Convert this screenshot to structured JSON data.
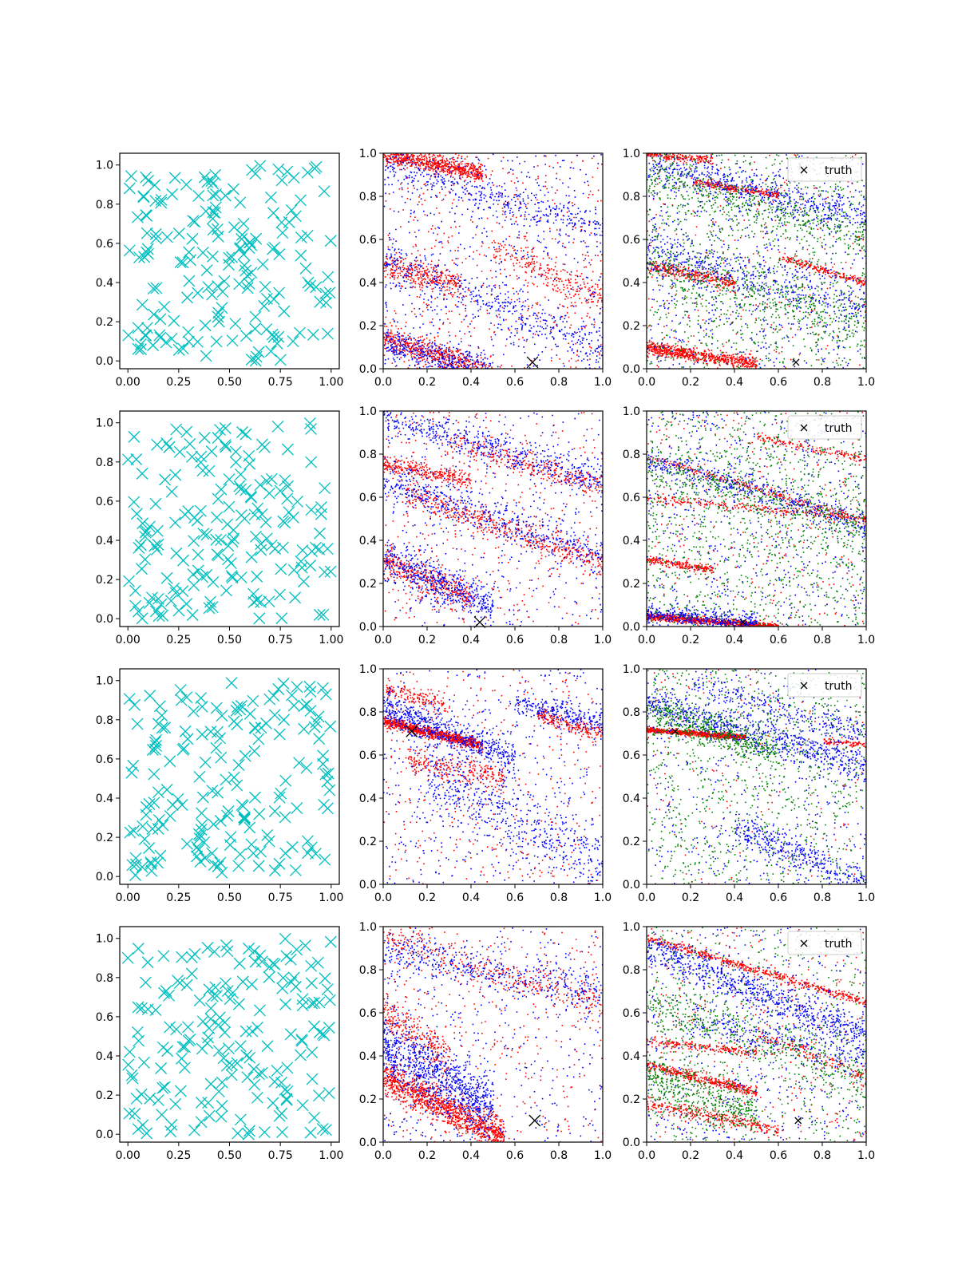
{
  "figure": {
    "background": "#ffffff",
    "colors": {
      "uniform_marker": "#00bfbf",
      "series_red": "#ff0000",
      "series_blue": "#0000ff",
      "series_green": "#008000",
      "truth_marker": "#000000"
    },
    "col1_xticks": [
      "0.00",
      "0.25",
      "0.50",
      "0.75",
      "1.00"
    ],
    "col1_yticks": [
      "0.0",
      "0.2",
      "0.4",
      "0.6",
      "0.8",
      "1.0"
    ],
    "col23_xticks": [
      "0.0",
      "0.2",
      "0.4",
      "0.6",
      "0.8",
      "1.0"
    ],
    "col23_yticks": [
      "0.0",
      "0.2",
      "0.4",
      "0.6",
      "0.8",
      "1.0"
    ]
  },
  "chart_data": [
    {
      "type": "scatter",
      "row": 1,
      "col": 1,
      "xlim": [
        -0.04,
        1.04
      ],
      "ylim": [
        -0.04,
        1.06
      ],
      "marker": "x",
      "color": "#00bfbf",
      "points": {
        "count": 180,
        "distribution": "uniform",
        "seed": 11
      }
    },
    {
      "type": "scatter",
      "row": 1,
      "col": 2,
      "xlim": [
        0,
        1
      ],
      "ylim": [
        0,
        1
      ],
      "truth": {
        "x": 0.68,
        "y": 0.03,
        "marker": "x"
      },
      "series": [
        {
          "color": "#ff0000",
          "bands": [
            {
              "x0": 0.0,
              "x1": 0.45,
              "y0": 1.0,
              "slope": -0.2,
              "noise": 0.02,
              "n": 700
            },
            {
              "x0": 0.0,
              "x1": 0.35,
              "y0": 0.48,
              "slope": -0.25,
              "noise": 0.03,
              "n": 300
            },
            {
              "x0": 0.0,
              "x1": 0.5,
              "y0": 0.15,
              "slope": -0.35,
              "noise": 0.03,
              "n": 600
            },
            {
              "x0": 0.5,
              "x1": 1.0,
              "y0": 0.78,
              "slope": -0.45,
              "noise": 0.04,
              "n": 250
            }
          ],
          "background_n": 500,
          "seed": 21
        },
        {
          "color": "#0000ff",
          "bands": [
            {
              "x0": 0.0,
              "x1": 1.0,
              "y0": 0.95,
              "slope": -0.3,
              "noise": 0.04,
              "n": 400
            },
            {
              "x0": 0.0,
              "x1": 1.0,
              "y0": 0.5,
              "slope": -0.4,
              "noise": 0.05,
              "n": 400
            },
            {
              "x0": 0.0,
              "x1": 0.5,
              "y0": 0.12,
              "slope": -0.3,
              "noise": 0.04,
              "n": 400
            }
          ],
          "background_n": 500,
          "seed": 22
        }
      ]
    },
    {
      "type": "scatter",
      "row": 1,
      "col": 3,
      "xlim": [
        0,
        1
      ],
      "ylim": [
        0,
        1
      ],
      "legend": {
        "label": "truth",
        "position": "upper right"
      },
      "truth": {
        "x": 0.68,
        "y": 0.03,
        "marker": "x"
      },
      "series": [
        {
          "color": "#ff0000",
          "bands": [
            {
              "x0": 0.0,
              "x1": 0.3,
              "y0": 1.0,
              "slope": -0.1,
              "noise": 0.01,
              "n": 200
            },
            {
              "x0": 0.2,
              "x1": 0.6,
              "y0": 0.9,
              "slope": -0.15,
              "noise": 0.01,
              "n": 250
            },
            {
              "x0": 0.0,
              "x1": 0.4,
              "y0": 0.48,
              "slope": -0.2,
              "noise": 0.015,
              "n": 300
            },
            {
              "x0": 0.0,
              "x1": 0.5,
              "y0": 0.1,
              "slope": -0.15,
              "noise": 0.015,
              "n": 700
            },
            {
              "x0": 0.6,
              "x1": 1.0,
              "y0": 0.7,
              "slope": -0.3,
              "noise": 0.01,
              "n": 200
            }
          ],
          "background_n": 300,
          "seed": 31
        },
        {
          "color": "#0000ff",
          "bands": [
            {
              "x0": 0.0,
              "x1": 1.0,
              "y0": 0.95,
              "slope": -0.25,
              "noise": 0.04,
              "n": 500
            },
            {
              "x0": 0.0,
              "x1": 1.0,
              "y0": 0.55,
              "slope": -0.25,
              "noise": 0.05,
              "n": 400
            }
          ],
          "background_n": 700,
          "seed": 32
        },
        {
          "color": "#008000",
          "bands": [
            {
              "x0": 0.0,
              "x1": 1.0,
              "y0": 0.9,
              "slope": -0.3,
              "noise": 0.05,
              "n": 400
            },
            {
              "x0": 0.0,
              "x1": 1.0,
              "y0": 0.5,
              "slope": -0.3,
              "noise": 0.06,
              "n": 400
            }
          ],
          "background_n": 900,
          "seed": 33
        }
      ]
    },
    {
      "type": "scatter",
      "row": 2,
      "col": 1,
      "xlim": [
        -0.04,
        1.04
      ],
      "ylim": [
        -0.04,
        1.06
      ],
      "marker": "x",
      "color": "#00bfbf",
      "points": {
        "count": 180,
        "distribution": "uniform",
        "seed": 12
      }
    },
    {
      "type": "scatter",
      "row": 2,
      "col": 2,
      "xlim": [
        0,
        1
      ],
      "ylim": [
        0,
        1
      ],
      "truth": {
        "x": 0.44,
        "y": 0.02,
        "marker": "x"
      },
      "series": [
        {
          "color": "#ff0000",
          "bands": [
            {
              "x0": 0.3,
              "x1": 1.0,
              "y0": 0.95,
              "slope": -0.3,
              "noise": 0.03,
              "n": 300
            },
            {
              "x0": 0.0,
              "x1": 0.4,
              "y0": 0.76,
              "slope": -0.2,
              "noise": 0.02,
              "n": 300
            },
            {
              "x0": 0.1,
              "x1": 1.0,
              "y0": 0.65,
              "slope": -0.35,
              "noise": 0.03,
              "n": 500
            },
            {
              "x0": 0.0,
              "x1": 0.4,
              "y0": 0.3,
              "slope": -0.4,
              "noise": 0.04,
              "n": 400
            }
          ],
          "background_n": 400,
          "seed": 41
        },
        {
          "color": "#0000ff",
          "bands": [
            {
              "x0": 0.0,
              "x1": 1.0,
              "y0": 0.98,
              "slope": -0.3,
              "noise": 0.04,
              "n": 500
            },
            {
              "x0": 0.0,
              "x1": 1.0,
              "y0": 0.68,
              "slope": -0.35,
              "noise": 0.05,
              "n": 500
            },
            {
              "x0": 0.0,
              "x1": 0.5,
              "y0": 0.32,
              "slope": -0.45,
              "noise": 0.05,
              "n": 500
            }
          ],
          "background_n": 350,
          "seed": 42
        }
      ]
    },
    {
      "type": "scatter",
      "row": 2,
      "col": 3,
      "xlim": [
        0,
        1
      ],
      "ylim": [
        0,
        1
      ],
      "legend": {
        "label": "truth",
        "position": "upper right"
      },
      "truth": {
        "x": 0.44,
        "y": 0.02,
        "marker": "x"
      },
      "series": [
        {
          "color": "#ff0000",
          "bands": [
            {
              "x0": 0.0,
              "x1": 0.6,
              "y0": 0.05,
              "slope": -0.08,
              "noise": 0.008,
              "n": 900
            },
            {
              "x0": 0.0,
              "x1": 0.3,
              "y0": 0.31,
              "slope": -0.15,
              "noise": 0.01,
              "n": 200
            },
            {
              "x0": 0.0,
              "x1": 1.0,
              "y0": 0.6,
              "slope": -0.1,
              "noise": 0.01,
              "n": 250
            },
            {
              "x0": 0.0,
              "x1": 1.0,
              "y0": 0.79,
              "slope": -0.3,
              "noise": 0.01,
              "n": 250
            },
            {
              "x0": 0.5,
              "x1": 1.0,
              "y0": 0.98,
              "slope": -0.2,
              "noise": 0.01,
              "n": 150
            }
          ],
          "background_n": 300,
          "seed": 51
        },
        {
          "color": "#0000ff",
          "bands": [
            {
              "x0": 0.0,
              "x1": 1.0,
              "y0": 0.78,
              "slope": -0.3,
              "noise": 0.03,
              "n": 400
            },
            {
              "x0": 0.0,
              "x1": 0.5,
              "y0": 0.06,
              "slope": -0.08,
              "noise": 0.02,
              "n": 400
            }
          ],
          "background_n": 600,
          "seed": 52
        },
        {
          "color": "#008000",
          "bands": [
            {
              "x0": 0.0,
              "x1": 1.0,
              "y0": 0.75,
              "slope": -0.3,
              "noise": 0.05,
              "n": 300
            }
          ],
          "background_n": 1100,
          "seed": 53
        }
      ]
    },
    {
      "type": "scatter",
      "row": 3,
      "col": 1,
      "xlim": [
        -0.04,
        1.04
      ],
      "ylim": [
        -0.04,
        1.06
      ],
      "marker": "x",
      "color": "#00bfbf",
      "points": {
        "count": 180,
        "distribution": "uniform",
        "seed": 13
      }
    },
    {
      "type": "scatter",
      "row": 3,
      "col": 2,
      "xlim": [
        0,
        1
      ],
      "ylim": [
        0,
        1
      ],
      "truth": {
        "x": 0.13,
        "y": 0.71,
        "marker": "x"
      },
      "series": [
        {
          "color": "#ff0000",
          "bands": [
            {
              "x0": 0.0,
              "x1": 0.45,
              "y0": 0.76,
              "slope": -0.25,
              "noise": 0.012,
              "n": 900
            },
            {
              "x0": 0.7,
              "x1": 1.0,
              "y0": 1.0,
              "slope": -0.3,
              "noise": 0.02,
              "n": 200
            },
            {
              "x0": 0.1,
              "x1": 0.55,
              "y0": 0.6,
              "slope": -0.2,
              "noise": 0.03,
              "n": 250
            },
            {
              "x0": 0.0,
              "x1": 0.3,
              "y0": 0.92,
              "slope": -0.3,
              "noise": 0.02,
              "n": 150
            }
          ],
          "background_n": 350,
          "seed": 61
        },
        {
          "color": "#0000ff",
          "bands": [
            {
              "x0": 0.0,
              "x1": 0.6,
              "y0": 0.82,
              "slope": -0.4,
              "noise": 0.04,
              "n": 600
            },
            {
              "x0": 0.6,
              "x1": 1.0,
              "y0": 1.0,
              "slope": -0.25,
              "noise": 0.03,
              "n": 250
            },
            {
              "x0": 0.2,
              "x1": 1.0,
              "y0": 0.6,
              "slope": -0.5,
              "noise": 0.08,
              "n": 500
            }
          ],
          "background_n": 450,
          "seed": 62
        }
      ]
    },
    {
      "type": "scatter",
      "row": 3,
      "col": 3,
      "xlim": [
        0,
        1
      ],
      "ylim": [
        0,
        1
      ],
      "legend": {
        "label": "truth",
        "position": "upper right"
      },
      "truth": {
        "x": 0.13,
        "y": 0.71,
        "marker": "x"
      },
      "series": [
        {
          "color": "#ff0000",
          "bands": [
            {
              "x0": 0.0,
              "x1": 0.45,
              "y0": 0.72,
              "slope": -0.08,
              "noise": 0.006,
              "n": 800
            },
            {
              "x0": 0.8,
              "x1": 1.0,
              "y0": 0.75,
              "slope": -0.1,
              "noise": 0.01,
              "n": 80
            }
          ],
          "background_n": 150,
          "seed": 71
        },
        {
          "color": "#0000ff",
          "bands": [
            {
              "x0": 0.0,
              "x1": 1.0,
              "y0": 0.85,
              "slope": -0.3,
              "noise": 0.04,
              "n": 700
            },
            {
              "x0": 0.2,
              "x1": 1.0,
              "y0": 1.0,
              "slope": -0.3,
              "noise": 0.03,
              "n": 250
            },
            {
              "x0": 0.4,
              "x1": 1.0,
              "y0": 0.45,
              "slope": -0.45,
              "noise": 0.04,
              "n": 400
            }
          ],
          "background_n": 450,
          "seed": 72
        },
        {
          "color": "#008000",
          "bands": [
            {
              "x0": 0.0,
              "x1": 0.6,
              "y0": 0.8,
              "slope": -0.3,
              "noise": 0.04,
              "n": 500
            }
          ],
          "background_n": 900,
          "seed": 73
        }
      ]
    },
    {
      "type": "scatter",
      "row": 4,
      "col": 1,
      "xlim": [
        -0.04,
        1.04
      ],
      "ylim": [
        -0.04,
        1.06
      ],
      "marker": "x",
      "color": "#00bfbf",
      "points": {
        "count": 180,
        "distribution": "uniform",
        "seed": 14
      }
    },
    {
      "type": "scatter",
      "row": 4,
      "col": 2,
      "xlim": [
        0,
        1
      ],
      "ylim": [
        0,
        1
      ],
      "truth": {
        "x": 0.69,
        "y": 0.1,
        "marker": "x"
      },
      "series": [
        {
          "color": "#ff0000",
          "bands": [
            {
              "x0": 0.0,
              "x1": 0.55,
              "y0": 0.3,
              "slope": -0.5,
              "noise": 0.04,
              "n": 1200
            },
            {
              "x0": 0.0,
              "x1": 1.0,
              "y0": 0.95,
              "slope": -0.3,
              "noise": 0.04,
              "n": 350
            },
            {
              "x0": 0.0,
              "x1": 0.3,
              "y0": 0.62,
              "slope": -0.8,
              "noise": 0.05,
              "n": 250
            }
          ],
          "background_n": 350,
          "seed": 81
        },
        {
          "color": "#0000ff",
          "bands": [
            {
              "x0": 0.0,
              "x1": 0.5,
              "y0": 0.45,
              "slope": -0.6,
              "noise": 0.07,
              "n": 900
            },
            {
              "x0": 0.0,
              "x1": 1.0,
              "y0": 0.9,
              "slope": -0.2,
              "noise": 0.05,
              "n": 400
            }
          ],
          "background_n": 400,
          "seed": 82
        }
      ]
    },
    {
      "type": "scatter",
      "row": 4,
      "col": 3,
      "xlim": [
        0,
        1
      ],
      "ylim": [
        0,
        1
      ],
      "legend": {
        "label": "truth",
        "position": "upper right"
      },
      "truth": {
        "x": 0.69,
        "y": 0.1,
        "marker": "x"
      },
      "series": [
        {
          "color": "#ff0000",
          "bands": [
            {
              "x0": 0.0,
              "x1": 1.0,
              "y0": 0.95,
              "slope": -0.3,
              "noise": 0.01,
              "n": 500
            },
            {
              "x0": 0.0,
              "x1": 0.5,
              "y0": 0.47,
              "slope": -0.1,
              "noise": 0.01,
              "n": 200
            },
            {
              "x0": 0.0,
              "x1": 0.5,
              "y0": 0.36,
              "slope": -0.25,
              "noise": 0.012,
              "n": 400
            },
            {
              "x0": 0.0,
              "x1": 0.6,
              "y0": 0.18,
              "slope": -0.2,
              "noise": 0.015,
              "n": 300
            },
            {
              "x0": 0.5,
              "x1": 1.0,
              "y0": 0.7,
              "slope": -0.4,
              "noise": 0.02,
              "n": 150
            }
          ],
          "background_n": 350,
          "seed": 91
        },
        {
          "color": "#0000ff",
          "bands": [
            {
              "x0": 0.0,
              "x1": 1.0,
              "y0": 0.9,
              "slope": -0.4,
              "noise": 0.04,
              "n": 700
            },
            {
              "x0": 0.2,
              "x1": 1.0,
              "y0": 0.6,
              "slope": -0.2,
              "noise": 0.05,
              "n": 300
            }
          ],
          "background_n": 500,
          "seed": 92
        },
        {
          "color": "#008000",
          "bands": [
            {
              "x0": 0.0,
              "x1": 1.0,
              "y0": 0.65,
              "slope": -0.35,
              "noise": 0.06,
              "n": 400
            },
            {
              "x0": 0.0,
              "x1": 0.5,
              "y0": 0.3,
              "slope": -0.35,
              "noise": 0.06,
              "n": 400
            }
          ],
          "background_n": 600,
          "seed": 93
        }
      ]
    }
  ]
}
